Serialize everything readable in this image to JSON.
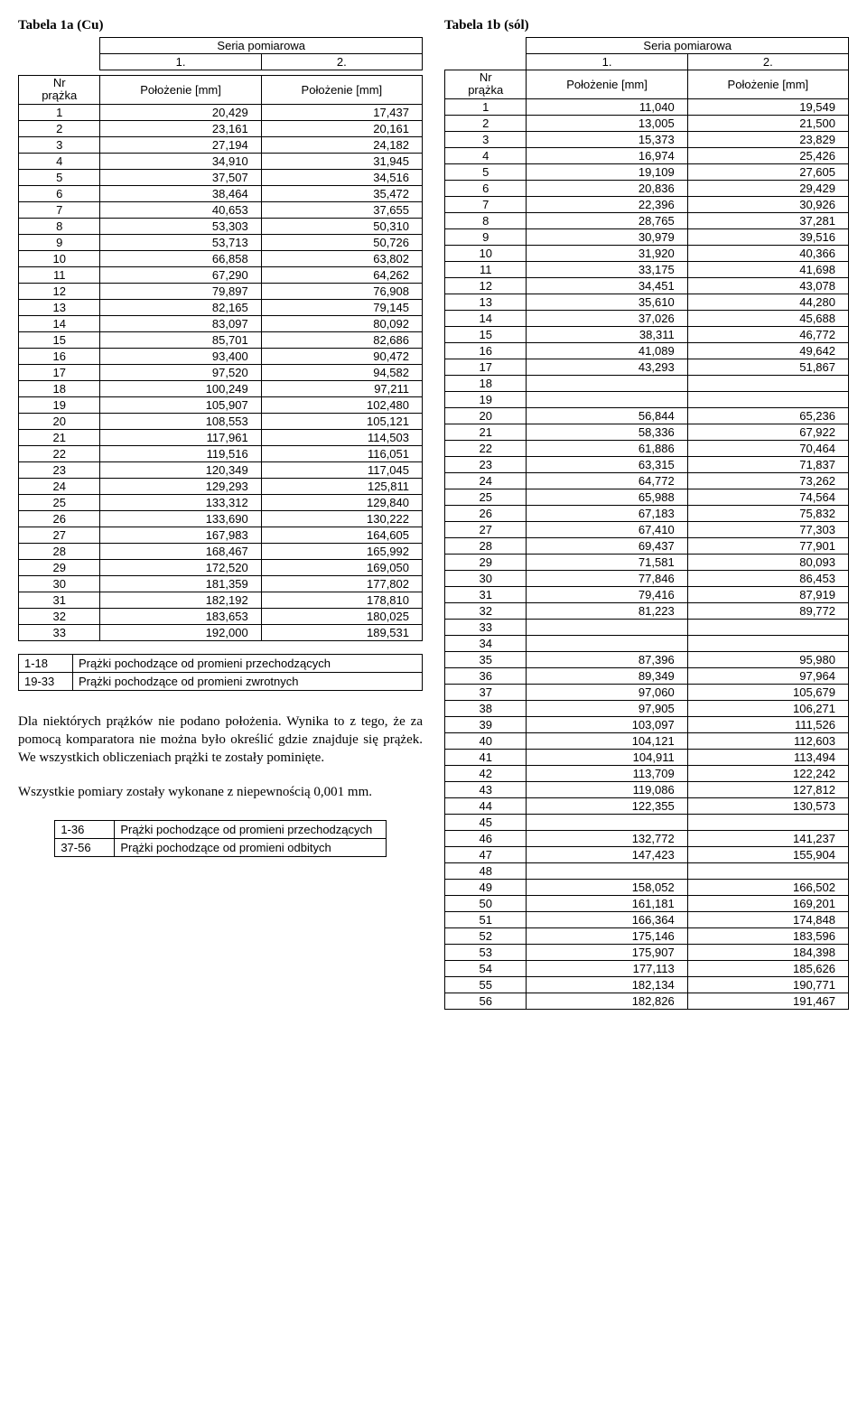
{
  "tableA": {
    "title": "Tabela 1a (Cu)",
    "series_label": "Seria pomiarowa",
    "col_labels": [
      "1.",
      "2."
    ],
    "row_header_line1": "Nr",
    "row_header_line2": "prążka",
    "measure_label": "Położenie [mm]",
    "rows": [
      [
        "1",
        "20,429",
        "17,437"
      ],
      [
        "2",
        "23,161",
        "20,161"
      ],
      [
        "3",
        "27,194",
        "24,182"
      ],
      [
        "4",
        "34,910",
        "31,945"
      ],
      [
        "5",
        "37,507",
        "34,516"
      ],
      [
        "6",
        "38,464",
        "35,472"
      ],
      [
        "7",
        "40,653",
        "37,655"
      ],
      [
        "8",
        "53,303",
        "50,310"
      ],
      [
        "9",
        "53,713",
        "50,726"
      ],
      [
        "10",
        "66,858",
        "63,802"
      ],
      [
        "11",
        "67,290",
        "64,262"
      ],
      [
        "12",
        "79,897",
        "76,908"
      ],
      [
        "13",
        "82,165",
        "79,145"
      ],
      [
        "14",
        "83,097",
        "80,092"
      ],
      [
        "15",
        "85,701",
        "82,686"
      ],
      [
        "16",
        "93,400",
        "90,472"
      ],
      [
        "17",
        "97,520",
        "94,582"
      ],
      [
        "18",
        "100,249",
        "97,211"
      ],
      [
        "19",
        "105,907",
        "102,480"
      ],
      [
        "20",
        "108,553",
        "105,121"
      ],
      [
        "21",
        "117,961",
        "114,503"
      ],
      [
        "22",
        "119,516",
        "116,051"
      ],
      [
        "23",
        "120,349",
        "117,045"
      ],
      [
        "24",
        "129,293",
        "125,811"
      ],
      [
        "25",
        "133,312",
        "129,840"
      ],
      [
        "26",
        "133,690",
        "130,222"
      ],
      [
        "27",
        "167,983",
        "164,605"
      ],
      [
        "28",
        "168,467",
        "165,992"
      ],
      [
        "29",
        "172,520",
        "169,050"
      ],
      [
        "30",
        "181,359",
        "177,802"
      ],
      [
        "31",
        "182,192",
        "178,810"
      ],
      [
        "32",
        "183,653",
        "180,025"
      ],
      [
        "33",
        "192,000",
        "189,531"
      ]
    ],
    "legend": [
      [
        "1-18",
        "Prążki pochodzące od promieni przechodzących"
      ],
      [
        "19-33",
        "Prążki pochodzące od promieni zwrotnych"
      ]
    ]
  },
  "paragraph1": "Dla niektórych prążków nie podano położenia. Wynika to z tego, że za pomocą komparatora nie można było określić gdzie znajduje się prążek. We wszystkich obliczeniach prążki te zostały pominięte.",
  "paragraph2": "Wszystkie pomiary zostały wykonane z niepewnością 0,001 mm.",
  "legendB": [
    [
      "1-36",
      "Prążki pochodzące od promieni przechodzących"
    ],
    [
      "37-56",
      "Prążki pochodzące od promieni odbitych"
    ]
  ],
  "tableB": {
    "title": "Tabela 1b (sól)",
    "series_label": "Seria pomiarowa",
    "col_labels": [
      "1.",
      "2."
    ],
    "row_header_line1": "Nr",
    "row_header_line2": "prążka",
    "measure_label": "Położenie [mm]",
    "rows": [
      [
        "1",
        "11,040",
        "19,549"
      ],
      [
        "2",
        "13,005",
        "21,500"
      ],
      [
        "3",
        "15,373",
        "23,829"
      ],
      [
        "4",
        "16,974",
        "25,426"
      ],
      [
        "5",
        "19,109",
        "27,605"
      ],
      [
        "6",
        "20,836",
        "29,429"
      ],
      [
        "7",
        "22,396",
        "30,926"
      ],
      [
        "8",
        "28,765",
        "37,281"
      ],
      [
        "9",
        "30,979",
        "39,516"
      ],
      [
        "10",
        "31,920",
        "40,366"
      ],
      [
        "11",
        "33,175",
        "41,698"
      ],
      [
        "12",
        "34,451",
        "43,078"
      ],
      [
        "13",
        "35,610",
        "44,280"
      ],
      [
        "14",
        "37,026",
        "45,688"
      ],
      [
        "15",
        "38,311",
        "46,772"
      ],
      [
        "16",
        "41,089",
        "49,642"
      ],
      [
        "17",
        "43,293",
        "51,867"
      ],
      [
        "18",
        "",
        ""
      ],
      [
        "19",
        "",
        ""
      ],
      [
        "20",
        "56,844",
        "65,236"
      ],
      [
        "21",
        "58,336",
        "67,922"
      ],
      [
        "22",
        "61,886",
        "70,464"
      ],
      [
        "23",
        "63,315",
        "71,837"
      ],
      [
        "24",
        "64,772",
        "73,262"
      ],
      [
        "25",
        "65,988",
        "74,564"
      ],
      [
        "26",
        "67,183",
        "75,832"
      ],
      [
        "27",
        "67,410",
        "77,303"
      ],
      [
        "28",
        "69,437",
        "77,901"
      ],
      [
        "29",
        "71,581",
        "80,093"
      ],
      [
        "30",
        "77,846",
        "86,453"
      ],
      [
        "31",
        "79,416",
        "87,919"
      ],
      [
        "32",
        "81,223",
        "89,772"
      ],
      [
        "33",
        "",
        ""
      ],
      [
        "34",
        "",
        ""
      ],
      [
        "35",
        "87,396",
        "95,980"
      ],
      [
        "36",
        "89,349",
        "97,964"
      ],
      [
        "37",
        "97,060",
        "105,679"
      ],
      [
        "38",
        "97,905",
        "106,271"
      ],
      [
        "39",
        "103,097",
        "111,526"
      ],
      [
        "40",
        "104,121",
        "112,603"
      ],
      [
        "41",
        "104,911",
        "113,494"
      ],
      [
        "42",
        "113,709",
        "122,242"
      ],
      [
        "43",
        "119,086",
        "127,812"
      ],
      [
        "44",
        "122,355",
        "130,573"
      ],
      [
        "45",
        "",
        ""
      ],
      [
        "46",
        "132,772",
        "141,237"
      ],
      [
        "47",
        "147,423",
        "155,904"
      ],
      [
        "48",
        "",
        ""
      ],
      [
        "49",
        "158,052",
        "166,502"
      ],
      [
        "50",
        "161,181",
        "169,201"
      ],
      [
        "51",
        "166,364",
        "174,848"
      ],
      [
        "52",
        "175,146",
        "183,596"
      ],
      [
        "53",
        "175,907",
        "184,398"
      ],
      [
        "54",
        "177,113",
        "185,626"
      ],
      [
        "55",
        "182,134",
        "190,771"
      ],
      [
        "56",
        "182,826",
        "191,467"
      ]
    ]
  }
}
